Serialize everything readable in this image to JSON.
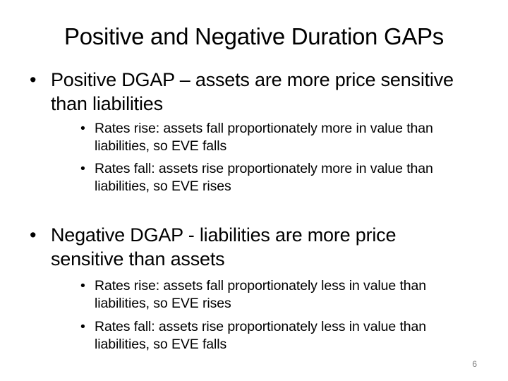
{
  "slide": {
    "title": "Positive and Negative Duration GAPs",
    "page_number": "6"
  },
  "sections": [
    {
      "bullet": "•",
      "text": "Positive DGAP – assets are more price sensitive than liabilities",
      "sub_items": [
        {
          "bullet": "•",
          "text": "Rates rise: assets fall proportionately more in value than liabilities, so EVE falls"
        },
        {
          "bullet": "•",
          "text": "Rates fall: assets rise proportionately more in value than liabilities, so EVE rises"
        }
      ]
    },
    {
      "bullet": "•",
      "text": "Negative DGAP - liabilities are more price sensitive than assets",
      "sub_items": [
        {
          "bullet": "•",
          "text": "Rates rise: assets fall proportionately less in value than liabilities, so EVE rises"
        },
        {
          "bullet": "•",
          "text": "Rates fall: assets rise proportionately less in value than liabilities, so EVE falls"
        }
      ]
    }
  ]
}
